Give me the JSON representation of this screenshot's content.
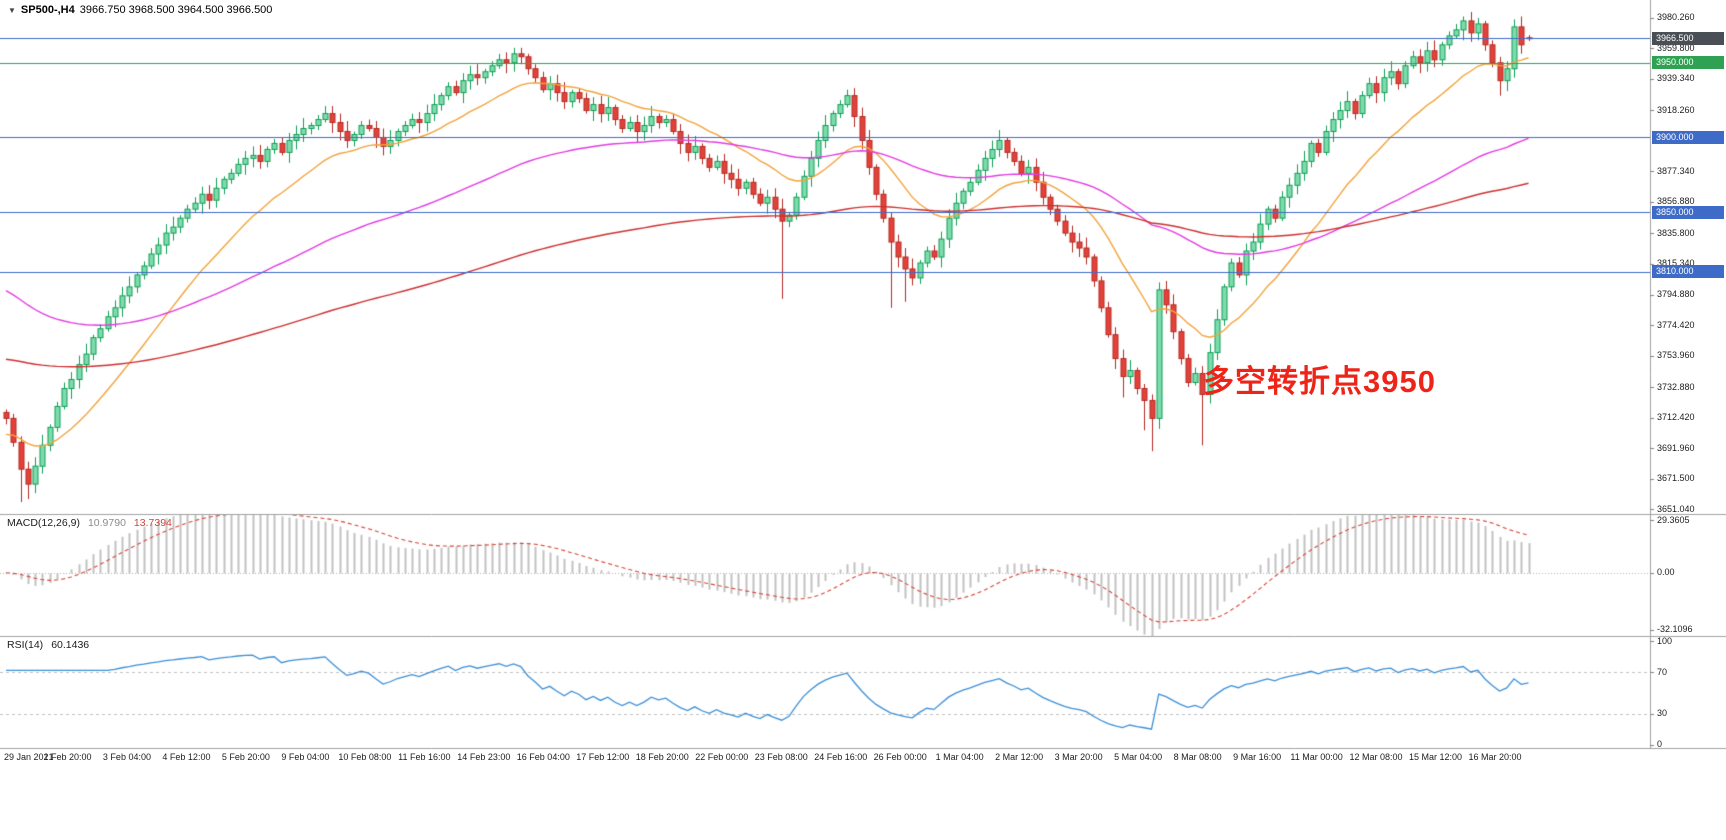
{
  "quote_bar": {
    "dropdown_icon": "▼",
    "symbol": "SP500-,H4",
    "ohlc": "3966.750 3968.500 3964.500 3966.500"
  },
  "annotation": {
    "text": "多空转折点3950",
    "color": "#ee2418"
  },
  "indicators": {
    "macd": {
      "label": "MACD(12,26,9)",
      "value_main": "10.9790",
      "value_signal": "13.7394",
      "params": {
        "fast": 12,
        "slow": 26,
        "signal": 9
      },
      "ticks": [
        "29.3605",
        "0.00",
        "-32.1096"
      ],
      "tick_values": [
        29.3605,
        0,
        -32.1096
      ],
      "ylim": [
        -35.5,
        33
      ],
      "histogram_color": "#c2c2c2",
      "signal_color": "#d6453a"
    },
    "rsi": {
      "label": "RSI(14)",
      "value": "60.1436",
      "period": 14,
      "ticks": [
        "100",
        "70",
        "30",
        "0"
      ],
      "tick_values": [
        100,
        70,
        30,
        0
      ],
      "levels": [
        70,
        30
      ],
      "ylim": [
        -3,
        105
      ],
      "line_color": "#3d8fd6"
    }
  },
  "chart_data": {
    "type": "candlestick",
    "symbol": "SP500-",
    "timeframe": "H4",
    "ylim": [
      3648,
      3992
    ],
    "first_open": 3716,
    "open_rule": "open[i]=close[i-1]; wicks = body extreme +/- 2..7 unless overridden",
    "closes": [
      3712,
      3696,
      3678,
      3668,
      3680,
      3694,
      3706,
      3720,
      3732,
      3738,
      3748,
      3755,
      3766,
      3772,
      3780,
      3786,
      3794,
      3800,
      3808,
      3814,
      3822,
      3828,
      3836,
      3840,
      3846,
      3852,
      3856,
      3862,
      3858,
      3866,
      3872,
      3876,
      3882,
      3886,
      3888,
      3884,
      3892,
      3896,
      3890,
      3898,
      3902,
      3906,
      3908,
      3912,
      3916,
      3910,
      3904,
      3898,
      3902,
      3908,
      3906,
      3900,
      3894,
      3898,
      3904,
      3908,
      3912,
      3910,
      3916,
      3922,
      3928,
      3934,
      3930,
      3938,
      3942,
      3940,
      3944,
      3948,
      3952,
      3950,
      3956,
      3954,
      3946,
      3940,
      3932,
      3936,
      3930,
      3924,
      3930,
      3926,
      3918,
      3922,
      3916,
      3920,
      3912,
      3906,
      3910,
      3904,
      3908,
      3914,
      3910,
      3912,
      3904,
      3896,
      3890,
      3894,
      3886,
      3880,
      3884,
      3876,
      3872,
      3866,
      3870,
      3862,
      3856,
      3860,
      3852,
      3844,
      3848,
      3860,
      3874,
      3886,
      3898,
      3908,
      3916,
      3922,
      3928,
      3914,
      3898,
      3880,
      3862,
      3846,
      3830,
      3820,
      3812,
      3806,
      3816,
      3824,
      3820,
      3832,
      3846,
      3856,
      3864,
      3870,
      3878,
      3886,
      3892,
      3898,
      3890,
      3884,
      3876,
      3880,
      3870,
      3860,
      3852,
      3844,
      3836,
      3830,
      3826,
      3820,
      3804,
      3786,
      3768,
      3752,
      3740,
      3744,
      3732,
      3724,
      3712,
      3798,
      3788,
      3770,
      3752,
      3736,
      3742,
      3728,
      3756,
      3778,
      3800,
      3816,
      3808,
      3824,
      3830,
      3842,
      3852,
      3846,
      3860,
      3868,
      3876,
      3884,
      3896,
      3890,
      3904,
      3912,
      3918,
      3924,
      3916,
      3928,
      3936,
      3930,
      3940,
      3944,
      3936,
      3948,
      3954,
      3950,
      3958,
      3952,
      3962,
      3968,
      3972,
      3978,
      3970,
      3976,
      3962,
      3950,
      3938,
      3946,
      3974,
      3962,
      3966.5
    ],
    "wick_low_overrides": {
      "2": 3656,
      "3": 3658,
      "107": 3792,
      "122": 3786,
      "124": 3790,
      "154": 3726,
      "157": 3704,
      "158": 3690,
      "165": 3694,
      "206": 3928,
      "209": 3956
    },
    "wick_high_overrides": {
      "44": 3921,
      "70": 3960,
      "71": 3960,
      "201": 3981,
      "203": 3980,
      "208": 3979
    },
    "last_candle_ohlc": [
      3966.75,
      3968.5,
      3964.5,
      3966.5
    ],
    "moving_averages": [
      {
        "name": "ma-fast-orange",
        "color": "#f2a33c",
        "period": 18,
        "seed": 3700
      },
      {
        "name": "ma-medium-magenta",
        "color": "#e23ce0",
        "period": 70,
        "seed": 3800
      },
      {
        "name": "ma-slow-red",
        "color": "#cc3030",
        "period": 170,
        "seed": 3752
      }
    ],
    "levels": [
      {
        "price": 3966.5,
        "color": "#3f6bc8",
        "label": "3966.500",
        "label_bg": "#4a4f55"
      },
      {
        "price": 3950,
        "color": "#2fa152",
        "label": "3950.000",
        "label_bg": "#2fa152"
      },
      {
        "price": 3900,
        "color": "#3f6bc8",
        "label": "3900.000",
        "label_bg": "#3f6bc8"
      },
      {
        "price": 3850,
        "color": "#3f6bc8",
        "label": "3850.000",
        "label_bg": "#3f6bc8"
      },
      {
        "price": 3810,
        "color": "#3f6bc8",
        "label": "3810.000",
        "label_bg": "#3f6bc8"
      }
    ],
    "price_ticks": [
      "3980.260",
      "3959.800",
      "3939.340",
      "3918.260",
      "3877.340",
      "3856.880",
      "3835.800",
      "3815.340",
      "3794.880",
      "3774.420",
      "3753.960",
      "3732.880",
      "3712.420",
      "3691.960",
      "3671.500",
      "3651.040"
    ],
    "time_labels": [
      "29 Jan 2021",
      "1 Feb 20:00",
      "3 Feb 04:00",
      "4 Feb 12:00",
      "5 Feb 20:00",
      "9 Feb 04:00",
      "10 Feb 08:00",
      "11 Feb 16:00",
      "14 Feb 23:00",
      "16 Feb 04:00",
      "17 Feb 12:00",
      "18 Feb 20:00",
      "22 Feb 00:00",
      "23 Feb 08:00",
      "24 Feb 16:00",
      "26 Feb 00:00",
      "1 Mar 04:00",
      "2 Mar 12:00",
      "3 Mar 20:00",
      "5 Mar 04:00",
      "8 Mar 08:00",
      "9 Mar 16:00",
      "11 Mar 00:00",
      "12 Mar 08:00",
      "15 Mar 12:00",
      "16 Mar 20:00"
    ],
    "up_color": {
      "fill": "#7ddcab",
      "stroke": "#0f9e54"
    },
    "down_color": {
      "fill": "#e3423a",
      "stroke": "#b52a23"
    }
  },
  "layout_colors": {
    "axis_text": "#1c1c1c",
    "panel_border": "#a0a0a0",
    "dotted_grid": "#b8b8b8"
  }
}
